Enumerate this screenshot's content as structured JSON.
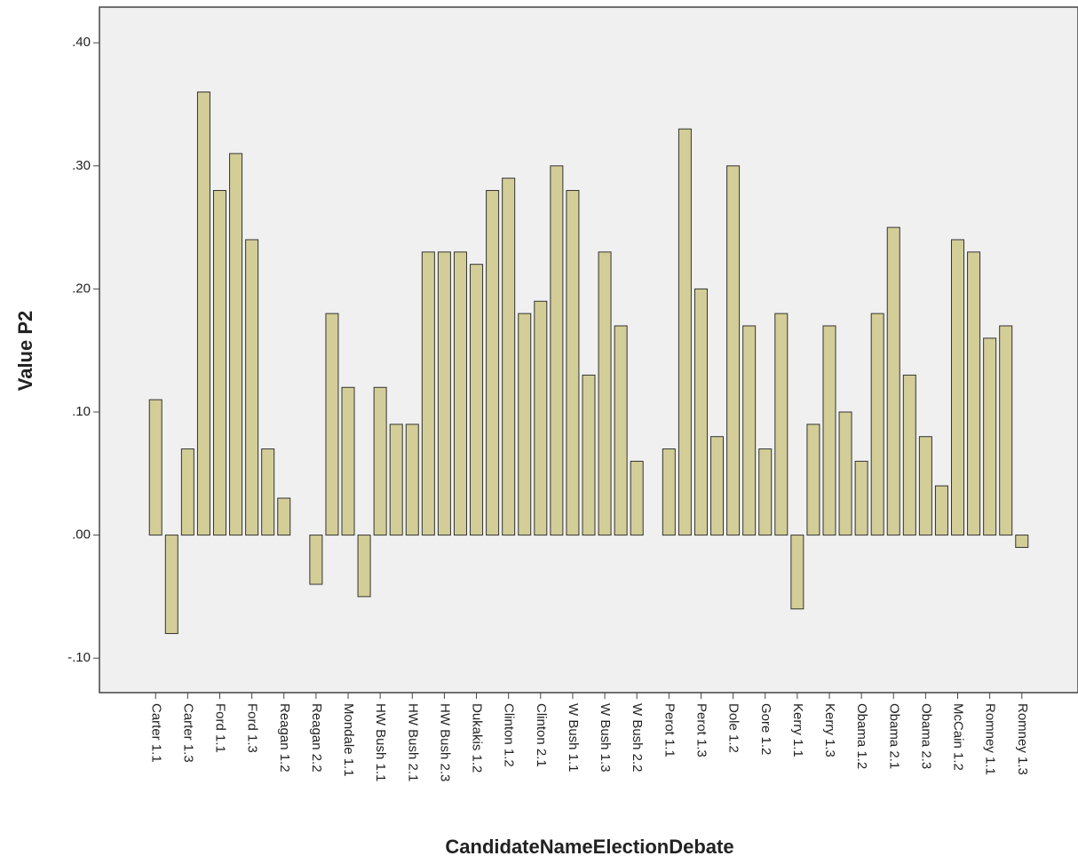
{
  "chart_data": {
    "type": "bar",
    "x_label": "CandidateNameElectionDebate",
    "y_label": "Value P2",
    "categories": [
      "Carter 1.1",
      null,
      "Carter 1.3",
      null,
      "Ford 1.1",
      null,
      "Ford 1.3",
      null,
      "Reagan 1.2",
      null,
      "Reagan 2.2",
      null,
      "Mondale 1.1",
      null,
      "HW Bush 1.1",
      null,
      "HW Bush 2.1",
      null,
      "HW Bush 2.3",
      null,
      "Dukakis 1.2",
      null,
      "Clinton 1.2",
      null,
      "Clinton 2.1",
      null,
      "W Bush 1.1",
      null,
      "W Bush 1.3",
      null,
      "W Bush 2.2",
      null,
      "Perot 1.1",
      null,
      "Perot 1.3",
      null,
      "Dole 1.2",
      null,
      "Gore 1.2",
      null,
      "Kerry 1.1",
      null,
      "Kerry 1.3",
      null,
      "Obama 1.2",
      null,
      "Obama 2.1",
      null,
      "Obama 2.3",
      null,
      "McCain 1.2",
      null,
      "Romney 1.1",
      null,
      "Romney 1.3"
    ],
    "values": [
      0.11,
      -0.08,
      0.07,
      0.36,
      0.28,
      0.31,
      0.24,
      0.07,
      0.03,
      0.0,
      -0.04,
      0.18,
      0.12,
      -0.05,
      0.12,
      0.09,
      0.09,
      0.23,
      0.23,
      0.23,
      0.22,
      0.28,
      0.29,
      0.18,
      0.19,
      0.3,
      0.28,
      0.13,
      0.23,
      0.17,
      0.06,
      0.0,
      0.07,
      0.33,
      0.2,
      0.08,
      0.3,
      0.17,
      0.07,
      0.18,
      -0.06,
      0.09,
      0.17,
      0.1,
      0.06,
      0.18,
      0.25,
      0.13,
      0.08,
      0.04,
      0.24,
      0.23,
      0.16,
      0.17,
      -0.01
    ],
    "color": "#d3ce97",
    "ylim": [
      -0.128,
      0.429
    ],
    "yticks": [
      {
        "value": -0.1,
        "label": "-.10"
      },
      {
        "value": 0,
        "label": ".00"
      },
      {
        "value": 0.1,
        "label": ".10"
      },
      {
        "value": 0.2,
        "label": ".20"
      },
      {
        "value": 0.3,
        "label": ".30"
      },
      {
        "value": 0.4,
        "label": ".40"
      }
    ]
  }
}
